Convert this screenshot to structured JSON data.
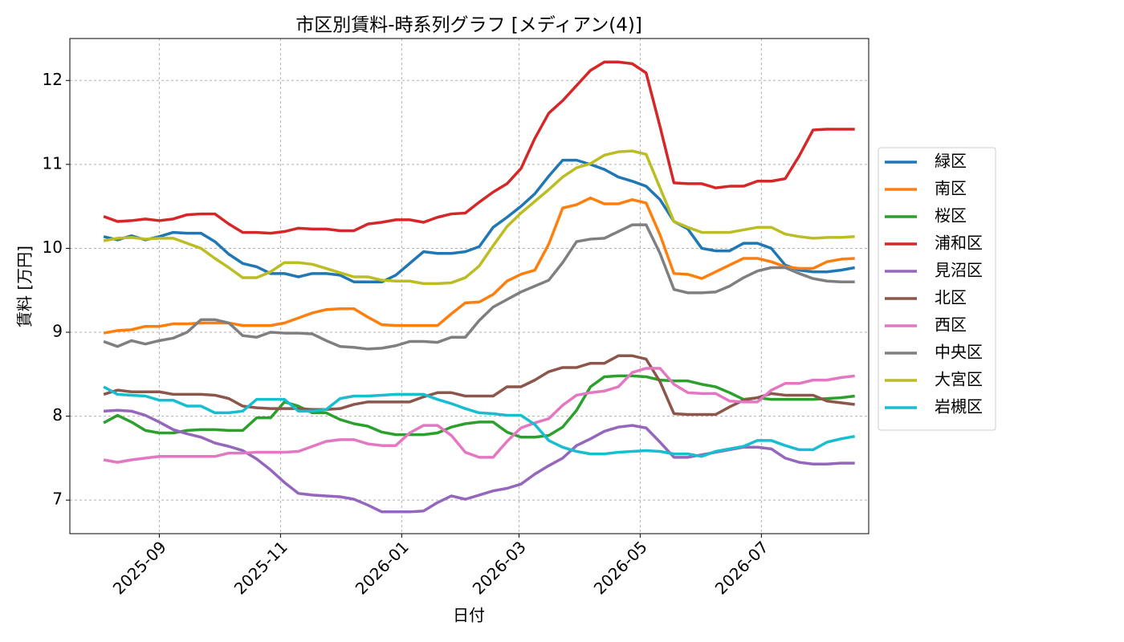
{
  "chart_data": {
    "type": "line",
    "title": "市区別賃料-時系列グラフ [メディアン(4)]",
    "xlabel": "日付",
    "ylabel": "賃料 [万円]",
    "x": [
      "2025-08-04",
      "2025-08-11",
      "2025-08-18",
      "2025-08-25",
      "2025-09-01",
      "2025-09-08",
      "2025-09-15",
      "2025-09-22",
      "2025-09-29",
      "2025-10-06",
      "2025-10-13",
      "2025-10-20",
      "2025-10-27",
      "2025-11-03",
      "2025-11-10",
      "2025-11-17",
      "2025-11-24",
      "2025-12-01",
      "2025-12-08",
      "2025-12-15",
      "2025-12-22",
      "2025-12-29",
      "2026-01-05",
      "2026-01-12",
      "2026-01-19",
      "2026-01-26",
      "2026-02-02",
      "2026-02-09",
      "2026-02-16",
      "2026-02-23",
      "2026-03-02",
      "2026-03-09",
      "2026-03-16",
      "2026-03-23",
      "2026-03-30",
      "2026-04-06",
      "2026-04-13",
      "2026-04-20",
      "2026-04-27",
      "2026-05-04",
      "2026-05-11",
      "2026-05-18",
      "2026-05-25",
      "2026-06-01",
      "2026-06-08",
      "2026-06-15",
      "2026-06-22",
      "2026-06-29",
      "2026-07-06",
      "2026-07-13",
      "2026-07-20",
      "2026-07-27",
      "2026-08-03",
      "2026-08-10",
      "2026-08-17"
    ],
    "series": [
      {
        "name": "緑区",
        "color": "#1f77b4",
        "values": [
          10.14,
          10.1,
          10.15,
          10.1,
          10.14,
          10.19,
          10.18,
          10.18,
          10.08,
          9.93,
          9.82,
          9.78,
          9.7,
          9.7,
          9.66,
          9.7,
          9.7,
          9.68,
          9.6,
          9.6,
          9.6,
          9.68,
          9.82,
          9.96,
          9.94,
          9.94,
          9.96,
          10.02,
          10.25,
          10.37,
          10.5,
          10.65,
          10.86,
          11.05,
          11.05,
          11.0,
          10.94,
          10.85,
          10.8,
          10.74,
          10.58,
          10.32,
          10.23,
          10.0,
          9.97,
          9.97,
          10.06,
          10.06,
          10.0,
          9.8,
          9.74,
          9.72,
          9.72,
          9.74,
          9.77
        ]
      },
      {
        "name": "南区",
        "color": "#ff7f0e",
        "values": [
          8.99,
          9.02,
          9.03,
          9.07,
          9.07,
          9.1,
          9.1,
          9.11,
          9.11,
          9.11,
          9.08,
          9.08,
          9.08,
          9.11,
          9.17,
          9.23,
          9.27,
          9.28,
          9.28,
          9.18,
          9.09,
          9.08,
          9.08,
          9.08,
          9.08,
          9.22,
          9.35,
          9.36,
          9.45,
          9.61,
          9.69,
          9.74,
          10.05,
          10.48,
          10.52,
          10.6,
          10.53,
          10.53,
          10.58,
          10.54,
          10.16,
          9.7,
          9.69,
          9.64,
          9.72,
          9.8,
          9.88,
          9.88,
          9.84,
          9.78,
          9.76,
          9.76,
          9.84,
          9.87,
          9.88
        ]
      },
      {
        "name": "桜区",
        "color": "#2ca02c",
        "values": [
          7.92,
          8.01,
          7.93,
          7.83,
          7.8,
          7.8,
          7.83,
          7.84,
          7.84,
          7.83,
          7.83,
          7.98,
          7.98,
          8.17,
          8.12,
          8.04,
          8.04,
          7.96,
          7.91,
          7.88,
          7.81,
          7.78,
          7.78,
          7.78,
          7.8,
          7.87,
          7.91,
          7.93,
          7.93,
          7.81,
          7.75,
          7.75,
          7.77,
          7.87,
          8.07,
          8.35,
          8.47,
          8.48,
          8.48,
          8.47,
          8.43,
          8.42,
          8.42,
          8.38,
          8.35,
          8.28,
          8.2,
          8.22,
          8.2,
          8.2,
          8.2,
          8.2,
          8.21,
          8.22,
          8.24
        ]
      },
      {
        "name": "浦和区",
        "color": "#d62728",
        "values": [
          10.38,
          10.32,
          10.33,
          10.35,
          10.33,
          10.35,
          10.4,
          10.41,
          10.41,
          10.29,
          10.19,
          10.19,
          10.18,
          10.2,
          10.24,
          10.23,
          10.23,
          10.21,
          10.21,
          10.29,
          10.31,
          10.34,
          10.34,
          10.31,
          10.37,
          10.41,
          10.42,
          10.55,
          10.67,
          10.77,
          10.95,
          11.31,
          11.61,
          11.76,
          11.94,
          12.12,
          12.22,
          12.22,
          12.2,
          12.09,
          11.45,
          10.78,
          10.77,
          10.77,
          10.72,
          10.74,
          10.74,
          10.8,
          10.8,
          10.83,
          11.1,
          11.41,
          11.42,
          11.42,
          11.42
        ]
      },
      {
        "name": "見沼区",
        "color": "#9467bd",
        "values": [
          8.06,
          8.07,
          8.06,
          8.01,
          7.93,
          7.84,
          7.79,
          7.75,
          7.68,
          7.64,
          7.59,
          7.49,
          7.36,
          7.21,
          7.08,
          7.06,
          7.05,
          7.04,
          7.01,
          6.94,
          6.86,
          6.86,
          6.86,
          6.87,
          6.97,
          7.05,
          7.01,
          7.06,
          7.11,
          7.14,
          7.19,
          7.31,
          7.41,
          7.5,
          7.65,
          7.73,
          7.82,
          7.87,
          7.89,
          7.86,
          7.69,
          7.51,
          7.51,
          7.54,
          7.57,
          7.6,
          7.63,
          7.63,
          7.61,
          7.5,
          7.45,
          7.43,
          7.43,
          7.44,
          7.44
        ]
      },
      {
        "name": "北区",
        "color": "#8c564b",
        "values": [
          8.26,
          8.31,
          8.29,
          8.29,
          8.29,
          8.26,
          8.26,
          8.26,
          8.25,
          8.21,
          8.12,
          8.1,
          8.09,
          8.09,
          8.09,
          8.08,
          8.08,
          8.09,
          8.14,
          8.17,
          8.17,
          8.17,
          8.17,
          8.23,
          8.28,
          8.28,
          8.24,
          8.24,
          8.24,
          8.35,
          8.35,
          8.43,
          8.53,
          8.58,
          8.58,
          8.63,
          8.63,
          8.72,
          8.72,
          8.68,
          8.41,
          8.03,
          8.02,
          8.02,
          8.02,
          8.11,
          8.19,
          8.22,
          8.27,
          8.25,
          8.25,
          8.25,
          8.18,
          8.16,
          8.14
        ]
      },
      {
        "name": "西区",
        "color": "#e377c2",
        "values": [
          7.48,
          7.45,
          7.48,
          7.5,
          7.52,
          7.52,
          7.52,
          7.52,
          7.52,
          7.56,
          7.56,
          7.57,
          7.57,
          7.57,
          7.58,
          7.64,
          7.7,
          7.72,
          7.72,
          7.67,
          7.65,
          7.65,
          7.8,
          7.89,
          7.89,
          7.77,
          7.57,
          7.51,
          7.51,
          7.7,
          7.86,
          7.92,
          7.97,
          8.13,
          8.25,
          8.28,
          8.3,
          8.35,
          8.52,
          8.57,
          8.57,
          8.38,
          8.28,
          8.27,
          8.27,
          8.18,
          8.17,
          8.17,
          8.31,
          8.39,
          8.39,
          8.43,
          8.43,
          8.46,
          8.48
        ]
      },
      {
        "name": "中央区",
        "color": "#7f7f7f",
        "values": [
          8.89,
          8.83,
          8.9,
          8.86,
          8.9,
          8.93,
          9.0,
          9.15,
          9.15,
          9.11,
          8.96,
          8.94,
          9.0,
          8.99,
          8.99,
          8.98,
          8.9,
          8.83,
          8.82,
          8.8,
          8.81,
          8.84,
          8.89,
          8.89,
          8.88,
          8.94,
          8.94,
          9.14,
          9.3,
          9.39,
          9.48,
          9.55,
          9.62,
          9.83,
          10.08,
          10.11,
          10.12,
          10.2,
          10.28,
          10.28,
          9.94,
          9.51,
          9.47,
          9.47,
          9.48,
          9.55,
          9.65,
          9.73,
          9.77,
          9.77,
          9.7,
          9.64,
          9.61,
          9.6,
          9.6
        ]
      },
      {
        "name": "大宮区",
        "color": "#bcbd22",
        "values": [
          10.09,
          10.12,
          10.13,
          10.11,
          10.12,
          10.12,
          10.06,
          10.0,
          9.88,
          9.77,
          9.65,
          9.65,
          9.72,
          9.83,
          9.83,
          9.81,
          9.76,
          9.71,
          9.66,
          9.66,
          9.62,
          9.61,
          9.61,
          9.58,
          9.58,
          9.59,
          9.65,
          9.79,
          10.03,
          10.26,
          10.42,
          10.56,
          10.7,
          10.85,
          10.96,
          11.01,
          11.11,
          11.15,
          11.16,
          11.12,
          10.72,
          10.32,
          10.25,
          10.19,
          10.19,
          10.19,
          10.22,
          10.25,
          10.25,
          10.17,
          10.14,
          10.12,
          10.13,
          10.13,
          10.14
        ]
      },
      {
        "name": "岩槻区",
        "color": "#17becf",
        "values": [
          8.35,
          8.26,
          8.25,
          8.24,
          8.19,
          8.19,
          8.12,
          8.12,
          8.04,
          8.04,
          8.06,
          8.2,
          8.2,
          8.2,
          8.06,
          8.06,
          8.08,
          8.21,
          8.24,
          8.24,
          8.25,
          8.26,
          8.26,
          8.26,
          8.2,
          8.15,
          8.09,
          8.04,
          8.03,
          8.01,
          8.01,
          7.9,
          7.71,
          7.63,
          7.58,
          7.55,
          7.55,
          7.57,
          7.58,
          7.59,
          7.58,
          7.55,
          7.55,
          7.52,
          7.58,
          7.61,
          7.64,
          7.71,
          7.71,
          7.65,
          7.6,
          7.6,
          7.69,
          7.73,
          7.76
        ]
      }
    ],
    "xlim": [
      "2025-07-18",
      "2026-08-24"
    ],
    "xticks": [
      "2025-09",
      "2025-11",
      "2026-01",
      "2026-03",
      "2026-05",
      "2026-07"
    ],
    "ylim": [
      6.6,
      12.5
    ],
    "yticks": [
      7,
      8,
      9,
      10,
      11,
      12
    ],
    "grid": true,
    "legend": "outside-right"
  }
}
